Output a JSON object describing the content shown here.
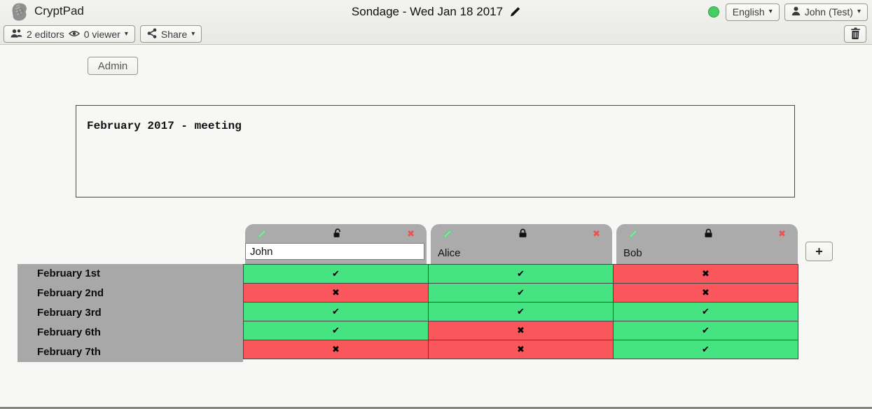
{
  "header": {
    "app_name": "CryptPad",
    "doc_title": "Sondage - Wed Jan 18 2017",
    "language_button": "English",
    "user_button": "John (Test)",
    "status_color": "#47ce62"
  },
  "toolbar": {
    "editors_label": "2 editors",
    "viewers_label": "0 viewer",
    "share_label": "Share"
  },
  "admin_button_label": "Admin",
  "description_text": "February 2017 - meeting",
  "poll": {
    "columns": [
      {
        "name": "John",
        "locked": false,
        "editable": true
      },
      {
        "name": "Alice",
        "locked": true,
        "editable": false
      },
      {
        "name": "Bob",
        "locked": true,
        "editable": false
      }
    ],
    "rows": [
      "February 1st",
      "February 2nd",
      "February 3rd",
      "February 6th",
      "February 7th"
    ],
    "votes": [
      [
        "yes",
        "yes",
        "no"
      ],
      [
        "no",
        "yes",
        "no"
      ],
      [
        "yes",
        "yes",
        "yes"
      ],
      [
        "yes",
        "no",
        "yes"
      ],
      [
        "no",
        "no",
        "yes"
      ]
    ],
    "yes_color": "#46e383",
    "no_color": "#f9575b",
    "yes_mark": "✔",
    "no_mark": "✖",
    "add_column_label": "+"
  },
  "icons": {
    "logo": "cryptpad-fist",
    "users": "people-group",
    "eye": "eye",
    "share": "share-nodes",
    "user": "person",
    "edit": "pencil",
    "lock": "padlock-closed",
    "unlock": "padlock-open",
    "trash": "trash-can",
    "status": "green-circle",
    "caret": "▾",
    "remove": "✖"
  }
}
